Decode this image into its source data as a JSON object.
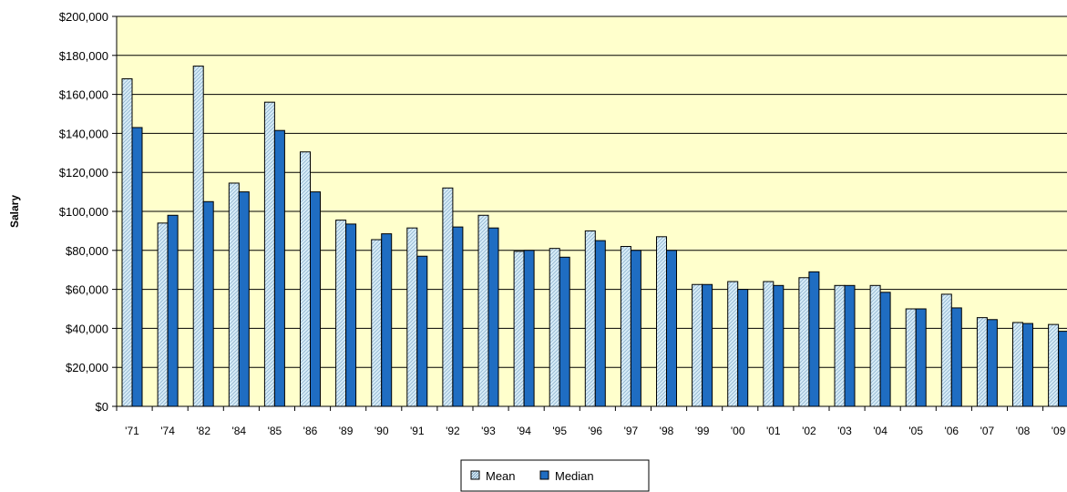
{
  "chart_data": {
    "type": "bar",
    "title": "",
    "xlabel": "",
    "ylabel": "Salary",
    "ylim": [
      0,
      200000
    ],
    "y_ticks": [
      0,
      20000,
      40000,
      60000,
      80000,
      100000,
      120000,
      140000,
      160000,
      180000,
      200000
    ],
    "y_tick_labels": [
      "$0",
      "$20,000",
      "$40,000",
      "$60,000",
      "$80,000",
      "$100,000",
      "$120,000",
      "$140,000",
      "$160,000",
      "$180,000",
      "$200,000"
    ],
    "grid": true,
    "legend_position": "bottom-center",
    "plot_background": "#ffffcc",
    "categories": [
      "'71",
      "'74",
      "'82",
      "'84",
      "'85",
      "'86",
      "'89",
      "'90",
      "'91",
      "'92",
      "'93",
      "'94",
      "'95",
      "'96",
      "'97",
      "'98",
      "'99",
      "'00",
      "'01",
      "'02",
      "'03",
      "'04",
      "'05",
      "'06",
      "'07",
      "'08",
      "'09"
    ],
    "series": [
      {
        "name": "Mean",
        "color": "#c6e2f2",
        "values": [
          168000,
          94000,
          174500,
          114500,
          156000,
          130500,
          95500,
          85500,
          91500,
          112000,
          98000,
          79500,
          81000,
          90000,
          82000,
          87000,
          62500,
          64000,
          64000,
          66000,
          62000,
          62000,
          50000,
          57500,
          45500,
          43000,
          42000
        ]
      },
      {
        "name": "Median",
        "color": "#1f6dc2",
        "values": [
          143000,
          98000,
          105000,
          110000,
          141500,
          110000,
          93500,
          88500,
          77000,
          92000,
          91500,
          80000,
          76500,
          85000,
          80000,
          80000,
          62500,
          60000,
          62000,
          69000,
          62000,
          58500,
          50000,
          50500,
          44500,
          42500,
          38500
        ]
      }
    ]
  }
}
